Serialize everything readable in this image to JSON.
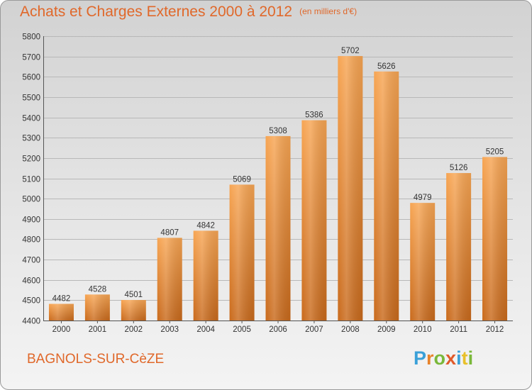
{
  "title": "Achats et Charges Externes 2000 à 2012",
  "unit": "(en milliers d'€)",
  "town": "BAGNOLS-SUR-CèZE",
  "logo": {
    "letters": [
      "P",
      "r",
      "o",
      "x",
      "i",
      "t",
      "i"
    ],
    "colors": [
      "#3aa0d8",
      "#e8832a",
      "#7ab83a",
      "#e05a2a",
      "#3aa0d8",
      "#e8c02a",
      "#7ab83a"
    ]
  },
  "colors": {
    "bar_top": "#f7a553",
    "bar_bottom": "#c96a1c",
    "accent": "#e0682a",
    "grid": "#b8b8b8"
  },
  "chart_data": {
    "type": "bar",
    "title": "Achats et Charges Externes 2000 à 2012",
    "subtitle": "(en milliers d'€)",
    "categories": [
      "2000",
      "2001",
      "2002",
      "2003",
      "2004",
      "2005",
      "2006",
      "2007",
      "2008",
      "2009",
      "2010",
      "2011",
      "2012"
    ],
    "values": [
      4482,
      4528,
      4501,
      4807,
      4842,
      5069,
      5308,
      5386,
      5702,
      5626,
      4979,
      5126,
      5205
    ],
    "ylim": [
      4400,
      5800
    ],
    "yticks": [
      4400,
      4500,
      4600,
      4700,
      4800,
      4900,
      5000,
      5100,
      5200,
      5300,
      5400,
      5500,
      5600,
      5700,
      5800
    ],
    "grid": true,
    "data_labels": true
  }
}
